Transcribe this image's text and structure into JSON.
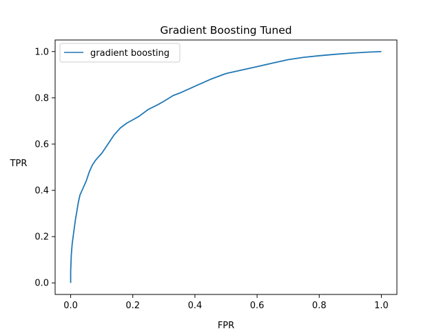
{
  "chart_data": {
    "type": "line",
    "title": "Gradient Boosting Tuned",
    "xlabel": "FPR",
    "ylabel": "TPR",
    "xlim": [
      -0.05,
      1.05
    ],
    "ylim": [
      -0.05,
      1.05
    ],
    "xticks": [
      0.0,
      0.2,
      0.4,
      0.6,
      0.8,
      1.0
    ],
    "yticks": [
      0.0,
      0.2,
      0.4,
      0.6,
      0.8,
      1.0
    ],
    "xtick_labels": [
      "0.0",
      "0.2",
      "0.4",
      "0.6",
      "0.8",
      "1.0"
    ],
    "ytick_labels": [
      "0.0",
      "0.2",
      "0.4",
      "0.6",
      "0.8",
      "1.0"
    ],
    "grid": false,
    "legend_position": "top-left",
    "series": [
      {
        "name": "gradient boosting",
        "color": "#1f77b4",
        "x": [
          0.0,
          0.0,
          0.002,
          0.005,
          0.01,
          0.015,
          0.02,
          0.025,
          0.03,
          0.04,
          0.05,
          0.06,
          0.07,
          0.08,
          0.09,
          0.1,
          0.12,
          0.14,
          0.16,
          0.18,
          0.2,
          0.22,
          0.25,
          0.28,
          0.3,
          0.33,
          0.35,
          0.4,
          0.45,
          0.5,
          0.55,
          0.6,
          0.65,
          0.7,
          0.75,
          0.8,
          0.85,
          0.9,
          0.95,
          1.0
        ],
        "y": [
          0.0,
          0.05,
          0.12,
          0.17,
          0.22,
          0.27,
          0.31,
          0.35,
          0.38,
          0.41,
          0.44,
          0.48,
          0.51,
          0.53,
          0.545,
          0.56,
          0.6,
          0.64,
          0.67,
          0.69,
          0.705,
          0.72,
          0.75,
          0.77,
          0.785,
          0.81,
          0.82,
          0.85,
          0.88,
          0.905,
          0.92,
          0.935,
          0.95,
          0.965,
          0.975,
          0.982,
          0.988,
          0.993,
          0.997,
          1.0
        ]
      }
    ]
  }
}
